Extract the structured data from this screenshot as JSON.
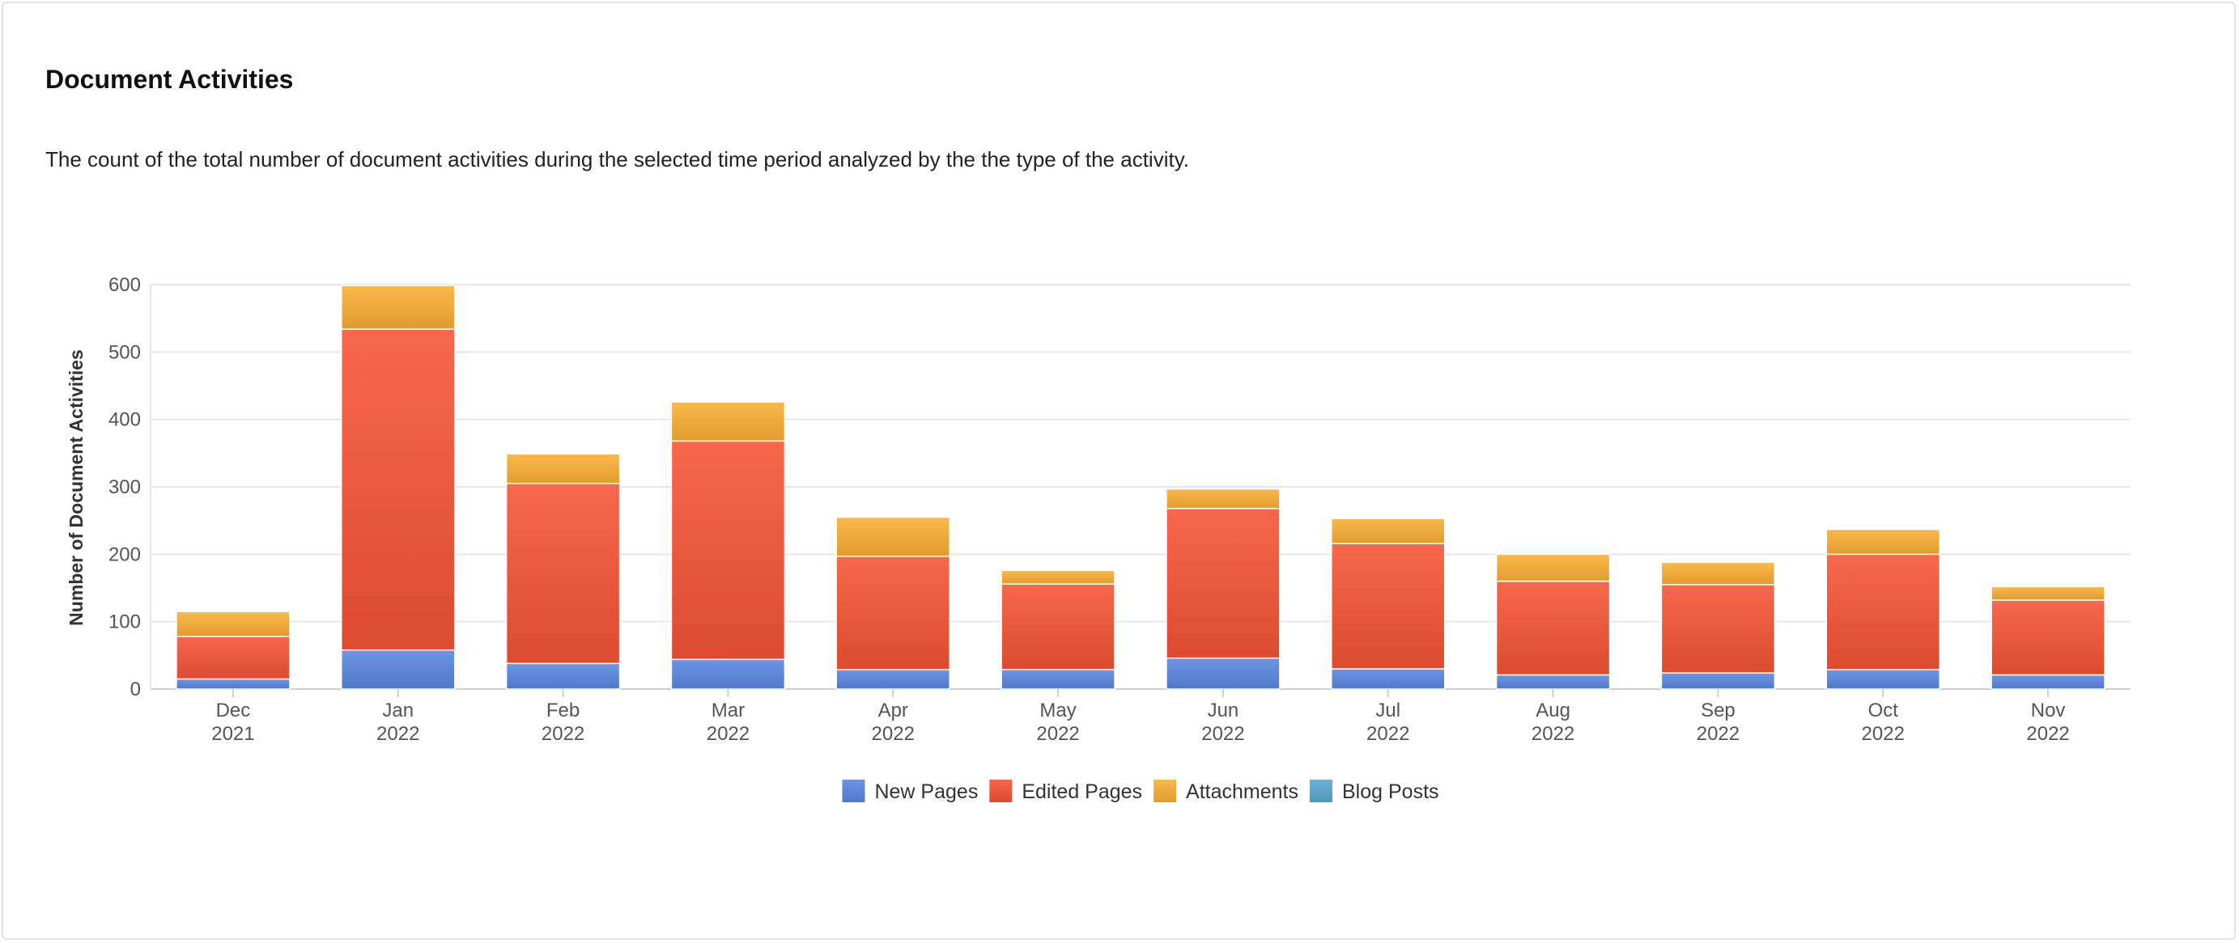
{
  "panel": {
    "title": "Document Activities",
    "description": "The count of the total number of document activities during the selected time period analyzed by the the type of the activity."
  },
  "chart_data": {
    "type": "bar",
    "stacked": true,
    "title": "",
    "xlabel": "",
    "ylabel": "Number of Document Activities",
    "ylim": [
      0,
      600
    ],
    "yticks": [
      0,
      100,
      200,
      300,
      400,
      500,
      600
    ],
    "grid": true,
    "legend_position": "bottom-center",
    "categories": [
      [
        "Dec",
        "2021"
      ],
      [
        "Jan",
        "2022"
      ],
      [
        "Feb",
        "2022"
      ],
      [
        "Mar",
        "2022"
      ],
      [
        "Apr",
        "2022"
      ],
      [
        "May",
        "2022"
      ],
      [
        "Jun",
        "2022"
      ],
      [
        "Jul",
        "2022"
      ],
      [
        "Aug",
        "2022"
      ],
      [
        "Sep",
        "2022"
      ],
      [
        "Oct",
        "2022"
      ],
      [
        "Nov",
        "2022"
      ]
    ],
    "series": [
      {
        "name": "New Pages",
        "color": "#5b83d3",
        "values": [
          15,
          58,
          38,
          44,
          29,
          29,
          46,
          30,
          21,
          24,
          29,
          21
        ]
      },
      {
        "name": "Edited Pages",
        "color": "#e6553a",
        "values": [
          63,
          476,
          267,
          324,
          168,
          127,
          222,
          186,
          139,
          131,
          171,
          111
        ]
      },
      {
        "name": "Attachments",
        "color": "#e9a73a",
        "values": [
          37,
          65,
          44,
          58,
          58,
          20,
          29,
          37,
          40,
          33,
          37,
          20
        ]
      },
      {
        "name": "Blog Posts",
        "color": "#5aa1c4",
        "values": [
          0,
          0,
          0,
          0,
          0,
          0,
          0,
          0,
          0,
          0,
          0,
          0
        ]
      }
    ]
  }
}
